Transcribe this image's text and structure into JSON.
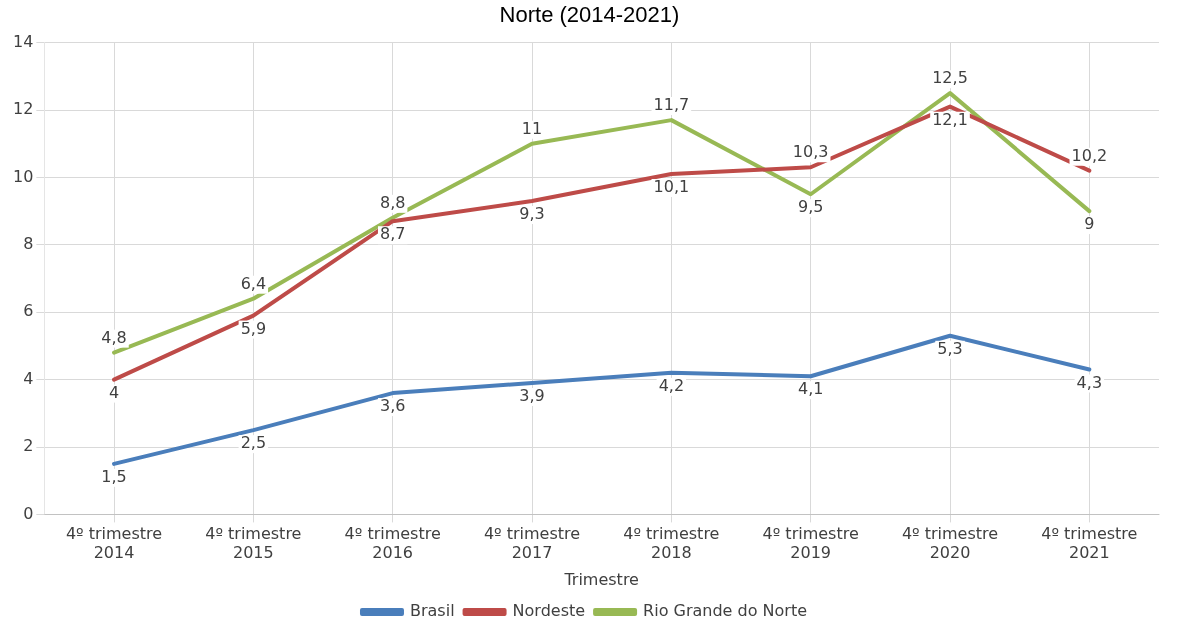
{
  "chart_data": {
    "type": "line",
    "title": "Norte (2014-2021)",
    "xlabel": "Trimestre",
    "categories": [
      "4º trimestre 2014",
      "4º trimestre 2015",
      "4º trimestre 2016",
      "4º trimestre 2017",
      "4º trimestre 2018",
      "4º trimestre 2019",
      "4º trimestre 2020",
      "4º trimestre 2021"
    ],
    "series": [
      {
        "name": "Brasil",
        "color": "#4a7ebb",
        "values": [
          1.5,
          2.5,
          3.6,
          3.9,
          4.2,
          4.1,
          5.3,
          4.3
        ],
        "value_labels": [
          "1,5",
          "2,5",
          "3,6",
          "3,9",
          "4,2",
          "4,1",
          "5,3",
          "4,3"
        ]
      },
      {
        "name": "Nordeste",
        "color": "#be4b48",
        "values": [
          4,
          5.9,
          8.7,
          9.3,
          10.1,
          10.3,
          12.1,
          10.2
        ],
        "value_labels": [
          "4",
          "5,9",
          "8,7",
          "9,3",
          "10,1",
          "10,3",
          "12,1",
          "10,2"
        ]
      },
      {
        "name": "Rio Grande do Norte",
        "color": "#98b954",
        "values": [
          4.8,
          6.4,
          8.8,
          11,
          11.7,
          9.5,
          12.5,
          9
        ],
        "value_labels": [
          "4,8",
          "6,4",
          "8,8",
          "11",
          "11,7",
          "9,5",
          "12,5",
          "9"
        ]
      }
    ],
    "ylim": [
      0,
      14
    ],
    "yticks": [
      0,
      2,
      4,
      6,
      8,
      10,
      12,
      14
    ],
    "grid": true,
    "legend": "bottom",
    "marker": "none",
    "line_style": "solid"
  }
}
